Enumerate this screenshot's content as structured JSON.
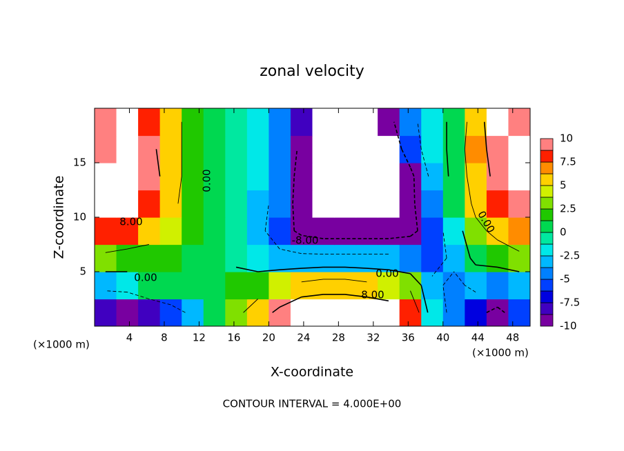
{
  "chart_data": {
    "type": "contour",
    "title": "zonal velocity",
    "xlabel": "X-coordinate",
    "ylabel": "Z-coordinate",
    "x_unit": "(×1000 m)",
    "footer": "CONTOUR INTERVAL = 4.000E+00",
    "xlim": [
      0,
      50
    ],
    "ylim": [
      0,
      20
    ],
    "xticks": [
      4,
      8,
      12,
      16,
      20,
      24,
      28,
      32,
      36,
      40,
      44,
      48
    ],
    "yticks": [
      5,
      10,
      15
    ],
    "x": [
      1.25,
      3.75,
      6.25,
      8.75,
      11.25,
      13.75,
      16.25,
      18.75,
      21.25,
      23.75,
      26.25,
      28.75,
      31.25,
      33.75,
      36.25,
      38.75,
      41.25,
      43.75,
      46.25,
      48.75
    ],
    "z": [
      1.25,
      3.75,
      6.25,
      8.75,
      11.25,
      13.75,
      16.25,
      18.75
    ],
    "values": [
      [
        -8,
        -10,
        -8,
        -6,
        -3,
        1,
        3,
        6,
        9,
        12,
        12,
        12,
        12,
        11,
        8,
        -2,
        -5,
        -7,
        -9,
        -6
      ],
      [
        -3,
        -2,
        0,
        1,
        0,
        1,
        2,
        2,
        4,
        5,
        6,
        6,
        5,
        4,
        3,
        -3,
        -5,
        -3,
        -4,
        -3
      ],
      [
        3,
        2,
        2,
        2,
        1,
        0,
        -1,
        -2,
        -3,
        -3,
        -3,
        -3,
        -3,
        -3,
        -4,
        -6,
        -3,
        1,
        2,
        3
      ],
      [
        8,
        8,
        6,
        4,
        2,
        0,
        -1,
        -3,
        -6,
        -9,
        -10,
        -10,
        -10,
        -10,
        -9,
        -6,
        -2,
        3,
        5,
        7
      ],
      [
        11,
        11,
        8,
        5,
        2,
        0,
        -1,
        -3,
        -5,
        -10,
        -12,
        -14,
        -14,
        -12,
        -9,
        -4,
        0,
        5,
        8,
        10
      ],
      [
        12,
        12,
        10,
        6,
        2,
        0,
        -1,
        -2,
        -4,
        -10,
        -12,
        -13,
        -13,
        -13,
        -9,
        -3,
        1,
        6,
        9,
        11
      ],
      [
        10,
        12,
        9,
        6,
        2,
        0,
        -1,
        -2,
        -4,
        -9,
        -12,
        -12,
        -12,
        -11,
        -6,
        -2,
        1,
        7,
        9,
        12
      ],
      [
        10,
        11,
        8,
        6,
        2,
        0,
        -1,
        -2,
        -4,
        -8,
        -12,
        -12,
        -12,
        -9,
        -5,
        -2,
        1,
        6,
        11,
        10
      ]
    ],
    "levels": [
      -10,
      -8.75,
      -7.5,
      -6.25,
      -5,
      -3.75,
      -2.5,
      -1.25,
      0,
      1.25,
      2.5,
      3.75,
      5,
      6.25,
      7.5,
      8.75,
      10
    ],
    "colors": [
      "#7800a0",
      "#4000c0",
      "#0000e0",
      "#0040ff",
      "#0080ff",
      "#00b8ff",
      "#00e8e8",
      "#00e8a0",
      "#00d850",
      "#20c800",
      "#80e000",
      "#d0f000",
      "#ffd000",
      "#ff8c00",
      "#ff2000",
      "#ff8080"
    ],
    "out_of_range_color": "#ffffff",
    "colorbar_ticks": [
      10,
      7.5,
      5,
      2.5,
      0,
      -2.5,
      -5,
      -7.5,
      -10
    ],
    "contour_levels": [
      -8,
      -4,
      0,
      4,
      8
    ],
    "contour_labels": [
      {
        "value": 8,
        "label": "8.00"
      },
      {
        "value": 0,
        "label": "0.00"
      },
      {
        "value": 0,
        "label": "0.00"
      },
      {
        "value": -8,
        "label": "-8.00"
      },
      {
        "value": 0,
        "label": "0.00"
      },
      {
        "value": 8,
        "label": "8.00"
      },
      {
        "value": 0,
        "label": "0.00"
      }
    ]
  }
}
